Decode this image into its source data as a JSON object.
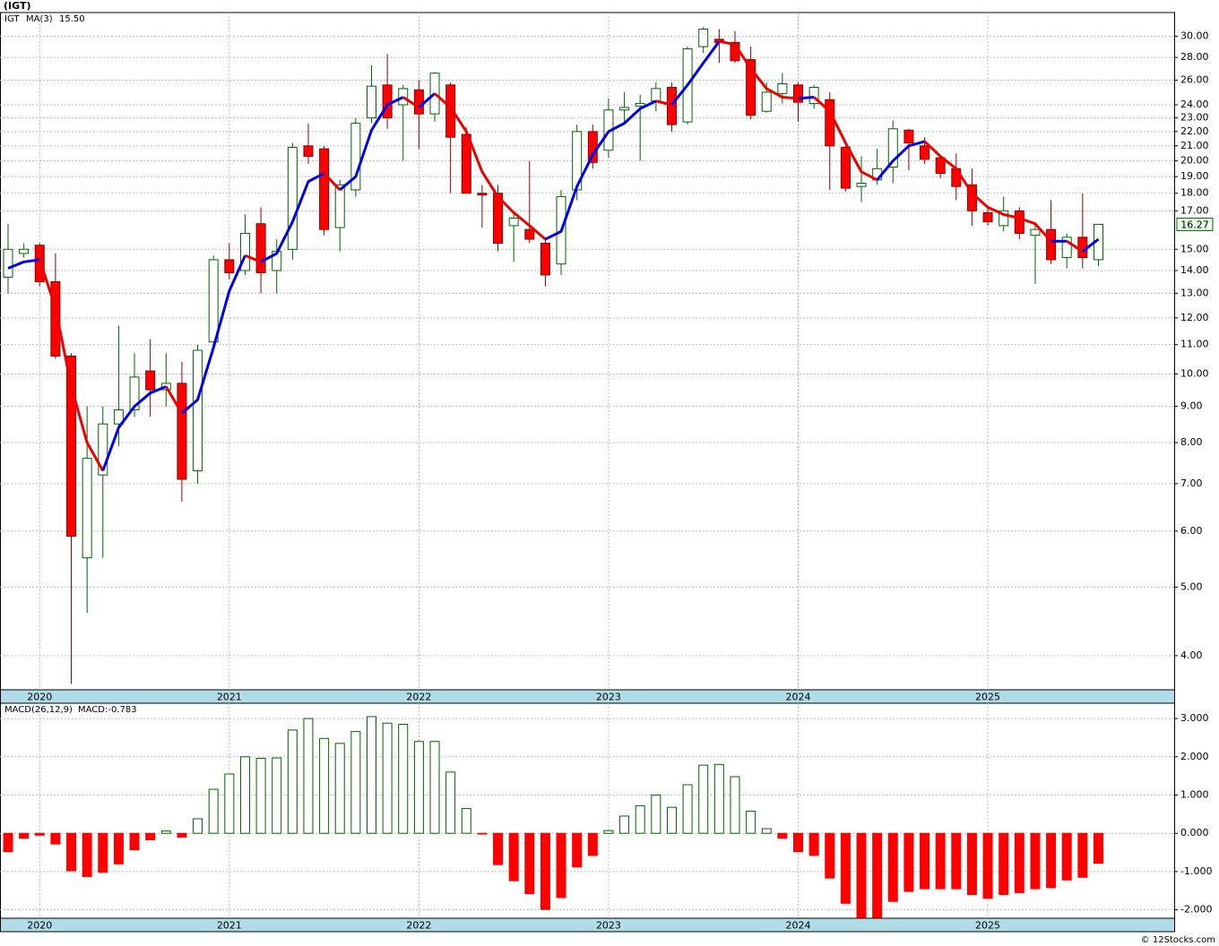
{
  "footer": "© 12Stocks.com",
  "chart_data": [
    {
      "type": "candlestick",
      "title": "(IGT)",
      "legend_name": "IGT",
      "log_scale": true,
      "grid": true,
      "up_color": "#006400",
      "down_color": "#ff0000",
      "last_label": "16.27",
      "last_color": "#006400",
      "categories": [
        null,
        null,
        "2020",
        null,
        null,
        null,
        null,
        null,
        null,
        null,
        null,
        null,
        null,
        null,
        "2021",
        null,
        null,
        null,
        null,
        null,
        null,
        null,
        null,
        null,
        null,
        null,
        "2022",
        null,
        null,
        null,
        null,
        null,
        null,
        null,
        null,
        null,
        null,
        null,
        "2023",
        null,
        null,
        null,
        null,
        null,
        null,
        null,
        null,
        null,
        null,
        null,
        "2024",
        null,
        null,
        null,
        null,
        null,
        null,
        null,
        null,
        null,
        null,
        null,
        "2025",
        null,
        null,
        null,
        null,
        null,
        null,
        null
      ],
      "open": [
        13.7,
        14.8,
        15.2,
        13.5,
        10.6,
        5.5,
        7.2,
        8.5,
        8.9,
        10.1,
        9.5,
        9.7,
        7.3,
        11.1,
        14.5,
        14.0,
        16.3,
        14.0,
        15.0,
        21.0,
        20.8,
        16.1,
        18.2,
        23.0,
        25.6,
        24.0,
        25.2,
        23.3,
        25.6,
        21.8,
        18.0,
        18.0,
        16.2,
        16.0,
        15.3,
        14.3,
        18.2,
        22.0,
        20.7,
        23.6,
        23.9,
        24.3,
        25.4,
        22.7,
        29.0,
        29.7,
        29.4,
        27.8,
        23.5,
        24.9,
        25.6,
        24.1,
        24.4,
        20.9,
        18.4,
        18.8,
        19.6,
        22.1,
        21.0,
        20.2,
        19.5,
        18.5,
        16.9,
        16.2,
        17.0,
        15.7,
        16.0,
        14.6,
        15.6,
        14.5
      ],
      "high": [
        16.3,
        15.3,
        15.3,
        14.8,
        10.7,
        9.0,
        9.0,
        11.7,
        10.7,
        11.2,
        10.7,
        10.4,
        11.0,
        14.7,
        15.3,
        16.8,
        17.2,
        15.5,
        21.2,
        22.6,
        21.0,
        18.8,
        23.0,
        27.3,
        28.3,
        25.6,
        26.0,
        26.7,
        25.8,
        22.3,
        18.5,
        18.5,
        17.0,
        20.0,
        15.5,
        18.2,
        22.5,
        22.5,
        24.5,
        25.0,
        24.8,
        25.8,
        25.8,
        29.0,
        30.9,
        30.7,
        30.5,
        29.0,
        25.8,
        26.6,
        25.8,
        25.6,
        25.0,
        21.0,
        20.3,
        20.8,
        22.8,
        22.2,
        21.6,
        20.4,
        20.5,
        19.5,
        17.2,
        17.8,
        17.2,
        16.3,
        17.6,
        15.8,
        18.0,
        16.3
      ],
      "low": [
        13.0,
        14.6,
        13.3,
        10.5,
        3.65,
        4.6,
        5.5,
        7.9,
        8.7,
        8.7,
        9.0,
        6.6,
        7.0,
        10.8,
        13.6,
        13.8,
        13.0,
        13.0,
        14.5,
        19.8,
        15.7,
        14.9,
        17.8,
        22.6,
        22.2,
        20.0,
        20.8,
        22.7,
        18.0,
        18.0,
        16.1,
        14.9,
        14.4,
        15.3,
        13.3,
        13.8,
        17.6,
        19.5,
        20.2,
        22.5,
        20.0,
        23.5,
        22.0,
        22.5,
        28.4,
        27.5,
        27.5,
        22.9,
        23.4,
        24.1,
        22.7,
        23.7,
        18.2,
        18.1,
        17.5,
        18.5,
        18.6,
        19.4,
        19.8,
        18.9,
        17.6,
        16.2,
        16.2,
        15.9,
        15.5,
        13.4,
        14.3,
        14.1,
        14.1,
        14.2
      ],
      "close": [
        15.0,
        15.0,
        13.5,
        10.6,
        5.9,
        7.6,
        8.5,
        8.9,
        9.9,
        9.5,
        9.7,
        7.1,
        10.8,
        14.5,
        13.9,
        15.8,
        13.9,
        14.9,
        20.9,
        20.3,
        16.0,
        18.5,
        22.6,
        25.5,
        23.0,
        25.3,
        23.3,
        26.6,
        21.6,
        18.0,
        17.9,
        15.3,
        16.6,
        15.5,
        13.8,
        17.8,
        22.0,
        19.9,
        23.6,
        23.8,
        24.1,
        25.3,
        22.5,
        28.8,
        30.7,
        29.4,
        27.7,
        23.2,
        25.0,
        25.7,
        24.2,
        25.4,
        21.0,
        18.3,
        18.6,
        19.5,
        22.2,
        21.2,
        20.1,
        19.2,
        18.4,
        17.0,
        16.4,
        17.0,
        15.8,
        16.0,
        14.5,
        15.6,
        14.6,
        16.27
      ],
      "ma": {
        "name": "MA(3)",
        "value_label": "15.50",
        "rise_color": "#0000ee",
        "fall_color": "#ee0000",
        "values": [
          14.1,
          14.4,
          14.5,
          12.4,
          9.6,
          8.0,
          7.3,
          8.4,
          9.0,
          9.4,
          9.6,
          8.8,
          9.2,
          10.9,
          13.1,
          14.7,
          14.4,
          14.8,
          16.4,
          18.7,
          19.2,
          18.2,
          19.0,
          22.1,
          24.0,
          24.6,
          23.8,
          24.9,
          23.8,
          22.0,
          19.3,
          17.8,
          16.9,
          16.2,
          15.5,
          15.9,
          18.4,
          20.4,
          22.0,
          22.6,
          23.7,
          24.3,
          24.0,
          25.6,
          27.5,
          29.5,
          29.2,
          27.0,
          25.3,
          24.6,
          24.5,
          24.6,
          23.5,
          21.2,
          19.3,
          18.8,
          20.0,
          21.0,
          21.3,
          20.3,
          19.5,
          18.0,
          17.2,
          16.8,
          16.6,
          16.3,
          15.4,
          15.4,
          14.9,
          15.5
        ]
      },
      "ylim": [
        3.58,
        32.4
      ],
      "yticks": [
        {
          "value": 4,
          "label": "4.00"
        },
        {
          "value": 5,
          "label": "5.00"
        },
        {
          "value": 6,
          "label": "6.00"
        },
        {
          "value": 7,
          "label": "7.00"
        },
        {
          "value": 8,
          "label": "8.00"
        },
        {
          "value": 9,
          "label": "9.00"
        },
        {
          "value": 10,
          "label": "10.00"
        },
        {
          "value": 11,
          "label": "11.00"
        },
        {
          "value": 12,
          "label": "12.00"
        },
        {
          "value": 13,
          "label": "13.00"
        },
        {
          "value": 14,
          "label": "14.00"
        },
        {
          "value": 15,
          "label": "15.00"
        },
        {
          "value": 17,
          "label": "17.00"
        },
        {
          "value": 18,
          "label": "18.00"
        },
        {
          "value": 19,
          "label": "19.00"
        },
        {
          "value": 20,
          "label": "20.00"
        },
        {
          "value": 21,
          "label": "21.00"
        },
        {
          "value": 22,
          "label": "22.00"
        },
        {
          "value": 23,
          "label": "23.00"
        },
        {
          "value": 24,
          "label": "24.00"
        },
        {
          "value": 26,
          "label": "26.00"
        },
        {
          "value": 28,
          "label": "28.00"
        },
        {
          "value": 30,
          "label": "30.00"
        }
      ]
    },
    {
      "type": "bar",
      "title": "MACD(26,12,9)",
      "value_label": "MACD:-0.783",
      "grid": true,
      "up_color": "#006400",
      "down_color": "#ff0000",
      "categories": [
        null,
        null,
        "2020",
        null,
        null,
        null,
        null,
        null,
        null,
        null,
        null,
        null,
        null,
        null,
        "2021",
        null,
        null,
        null,
        null,
        null,
        null,
        null,
        null,
        null,
        null,
        null,
        "2022",
        null,
        null,
        null,
        null,
        null,
        null,
        null,
        null,
        null,
        null,
        null,
        "2023",
        null,
        null,
        null,
        null,
        null,
        null,
        null,
        null,
        null,
        null,
        null,
        "2024",
        null,
        null,
        null,
        null,
        null,
        null,
        null,
        null,
        null,
        null,
        null,
        "2025",
        null,
        null,
        null,
        null,
        null,
        null,
        null
      ],
      "values": [
        -0.48,
        -0.13,
        -0.05,
        -0.28,
        -0.98,
        -1.13,
        -1.02,
        -0.8,
        -0.43,
        -0.17,
        0.06,
        -0.1,
        0.38,
        1.15,
        1.55,
        2.0,
        1.96,
        1.97,
        2.7,
        3.0,
        2.48,
        2.35,
        2.66,
        3.05,
        2.88,
        2.85,
        2.4,
        2.4,
        1.6,
        0.65,
        -0.02,
        -0.82,
        -1.24,
        -1.58,
        -1.99,
        -1.68,
        -0.88,
        -0.58,
        0.07,
        0.45,
        0.72,
        1.0,
        0.68,
        1.27,
        1.78,
        1.8,
        1.48,
        0.58,
        0.12,
        -0.13,
        -0.48,
        -0.58,
        -1.17,
        -1.83,
        -2.2,
        -2.2,
        -1.78,
        -1.52,
        -1.45,
        -1.45,
        -1.45,
        -1.6,
        -1.7,
        -1.6,
        -1.55,
        -1.45,
        -1.42,
        -1.22,
        -1.15,
        -0.783
      ],
      "ylim": [
        -2.22,
        3.4
      ],
      "yticks": [
        {
          "value": -2,
          "label": "-2.000"
        },
        {
          "value": -1,
          "label": "-1.000"
        },
        {
          "value": 0,
          "label": "0.000"
        },
        {
          "value": 1,
          "label": "1.000"
        },
        {
          "value": 2,
          "label": "2.000"
        },
        {
          "value": 3,
          "label": "3.000"
        }
      ]
    }
  ]
}
